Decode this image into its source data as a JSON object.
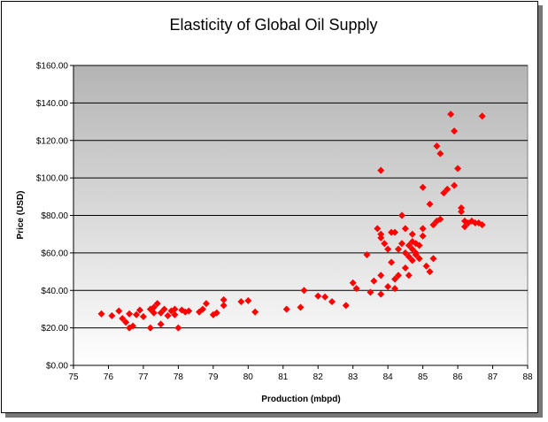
{
  "chart_data": {
    "type": "scatter",
    "title": "Elasticity of Global Oil Supply",
    "xlabel": "Production (mbpd)",
    "ylabel": "Price (USD)",
    "xlim": [
      75,
      88
    ],
    "ylim": [
      0,
      160
    ],
    "x_ticks": [
      "75",
      "76",
      "77",
      "78",
      "79",
      "80",
      "81",
      "82",
      "83",
      "84",
      "85",
      "86",
      "87",
      "88"
    ],
    "y_ticks": [
      "$0.00",
      "$20.00",
      "$40.00",
      "$60.00",
      "$80.00",
      "$100.00",
      "$120.00",
      "$140.00",
      "$160.00"
    ],
    "grid": true,
    "legend": "none",
    "marker_color": "#ff0000",
    "series": [
      {
        "points": [
          [
            75.8,
            27.5
          ],
          [
            76.1,
            26.5
          ],
          [
            76.3,
            29
          ],
          [
            76.4,
            25
          ],
          [
            76.5,
            23
          ],
          [
            76.6,
            20
          ],
          [
            76.6,
            27.5
          ],
          [
            76.7,
            21
          ],
          [
            76.8,
            27
          ],
          [
            76.9,
            29.5
          ],
          [
            77.0,
            26
          ],
          [
            77.2,
            20
          ],
          [
            77.2,
            30
          ],
          [
            77.3,
            31
          ],
          [
            77.3,
            28
          ],
          [
            77.4,
            33
          ],
          [
            77.5,
            22
          ],
          [
            77.5,
            28
          ],
          [
            77.6,
            30
          ],
          [
            77.7,
            26.5
          ],
          [
            77.8,
            29
          ],
          [
            77.9,
            30
          ],
          [
            77.9,
            27
          ],
          [
            78.0,
            20
          ],
          [
            78.1,
            29.5
          ],
          [
            78.2,
            28.5
          ],
          [
            78.3,
            29
          ],
          [
            78.6,
            28.5
          ],
          [
            78.7,
            30
          ],
          [
            78.8,
            33
          ],
          [
            79.0,
            27
          ],
          [
            79.1,
            28
          ],
          [
            79.3,
            35
          ],
          [
            79.3,
            32
          ],
          [
            79.8,
            34
          ],
          [
            80.0,
            34.5
          ],
          [
            80.2,
            28.5
          ],
          [
            81.1,
            30
          ],
          [
            81.5,
            31
          ],
          [
            81.6,
            40
          ],
          [
            82.0,
            37
          ],
          [
            82.2,
            36.5
          ],
          [
            82.4,
            34
          ],
          [
            82.8,
            32
          ],
          [
            83.0,
            44
          ],
          [
            83.1,
            41
          ],
          [
            83.4,
            59
          ],
          [
            83.5,
            39
          ],
          [
            83.6,
            45
          ],
          [
            83.7,
            73
          ],
          [
            83.8,
            70
          ],
          [
            83.8,
            68
          ],
          [
            83.8,
            48
          ],
          [
            83.8,
            38
          ],
          [
            83.8,
            104
          ],
          [
            83.9,
            65
          ],
          [
            84.0,
            42
          ],
          [
            84.0,
            62
          ],
          [
            84.1,
            71
          ],
          [
            84.1,
            55
          ],
          [
            84.2,
            46
          ],
          [
            84.2,
            41
          ],
          [
            84.2,
            71
          ],
          [
            84.3,
            62
          ],
          [
            84.3,
            48
          ],
          [
            84.4,
            80
          ],
          [
            84.4,
            65
          ],
          [
            84.5,
            73
          ],
          [
            84.5,
            60
          ],
          [
            84.5,
            52
          ],
          [
            84.6,
            64
          ],
          [
            84.6,
            58
          ],
          [
            84.6,
            48
          ],
          [
            84.7,
            70
          ],
          [
            84.7,
            66
          ],
          [
            84.7,
            62
          ],
          [
            84.7,
            56
          ],
          [
            84.8,
            59
          ],
          [
            84.8,
            65
          ],
          [
            84.8,
            60
          ],
          [
            84.9,
            64
          ],
          [
            84.9,
            57
          ],
          [
            85.0,
            73
          ],
          [
            85.0,
            95
          ],
          [
            85.0,
            69
          ],
          [
            85.1,
            53
          ],
          [
            85.2,
            86
          ],
          [
            85.2,
            50
          ],
          [
            85.3,
            57
          ],
          [
            85.3,
            75
          ],
          [
            85.4,
            77
          ],
          [
            85.4,
            117
          ],
          [
            85.5,
            78
          ],
          [
            85.5,
            113
          ],
          [
            85.6,
            92
          ],
          [
            85.7,
            94
          ],
          [
            85.8,
            134
          ],
          [
            85.9,
            96
          ],
          [
            85.9,
            125
          ],
          [
            86.0,
            105
          ],
          [
            86.1,
            84
          ],
          [
            86.1,
            82
          ],
          [
            86.2,
            77
          ],
          [
            86.2,
            74
          ],
          [
            86.3,
            76
          ],
          [
            86.4,
            77
          ],
          [
            86.5,
            76
          ],
          [
            86.6,
            76
          ],
          [
            86.7,
            75
          ],
          [
            86.7,
            133
          ]
        ]
      }
    ]
  }
}
